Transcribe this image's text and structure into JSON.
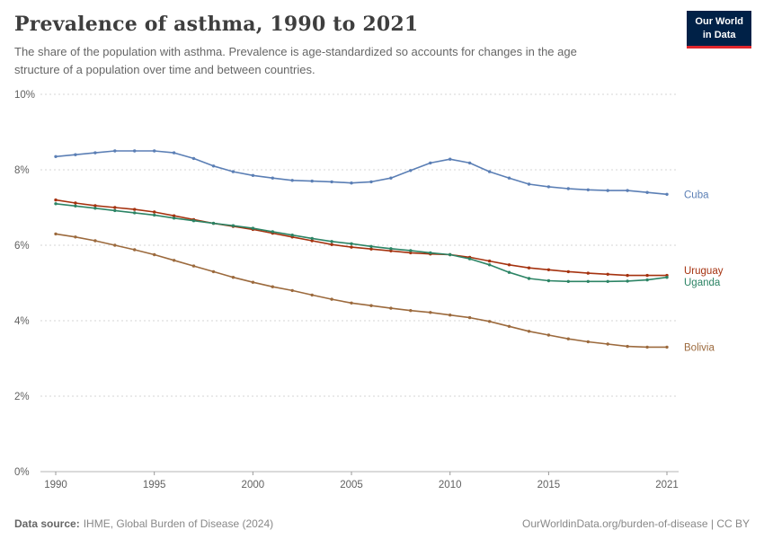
{
  "header": {
    "title": "Prevalence of asthma, 1990 to 2021",
    "subtitle": "The share of the population with asthma. Prevalence is age-standardized so accounts for changes in the age structure of a population over time and between countries.",
    "logo": {
      "line1": "Our World",
      "line2": "in Data"
    }
  },
  "footer": {
    "source_label": "Data source:",
    "source_text": "IHME, Global Burden of Disease (2024)",
    "credit": "OurWorldinData.org/burden-of-disease | CC BY"
  },
  "chart_data": {
    "type": "line",
    "title": "Prevalence of asthma, 1990 to 2021",
    "xlabel": "",
    "ylabel": "",
    "ylim": [
      0,
      10
    ],
    "yticks": [
      0,
      2,
      4,
      6,
      8,
      10
    ],
    "ytick_suffix": "%",
    "xticks": [
      1990,
      1995,
      2000,
      2005,
      2010,
      2015,
      2021
    ],
    "grid": "dashed-horizontal",
    "legend_position": "right-end-labels",
    "x": [
      1990,
      1991,
      1992,
      1993,
      1994,
      1995,
      1996,
      1997,
      1998,
      1999,
      2000,
      2001,
      2002,
      2003,
      2004,
      2005,
      2006,
      2007,
      2008,
      2009,
      2010,
      2011,
      2012,
      2013,
      2014,
      2015,
      2016,
      2017,
      2018,
      2019,
      2020,
      2021
    ],
    "series": [
      {
        "name": "Cuba",
        "color": "#5b7fb5",
        "values": [
          8.35,
          8.4,
          8.45,
          8.5,
          8.5,
          8.5,
          8.45,
          8.3,
          8.1,
          7.95,
          7.85,
          7.78,
          7.72,
          7.7,
          7.68,
          7.65,
          7.68,
          7.78,
          7.98,
          8.18,
          8.28,
          8.18,
          7.95,
          7.78,
          7.62,
          7.55,
          7.5,
          7.47,
          7.45,
          7.45,
          7.4,
          7.35
        ]
      },
      {
        "name": "Uruguay",
        "color": "#a5320f",
        "values": [
          7.2,
          7.12,
          7.05,
          7.0,
          6.95,
          6.88,
          6.78,
          6.68,
          6.58,
          6.5,
          6.42,
          6.32,
          6.22,
          6.12,
          6.02,
          5.95,
          5.9,
          5.85,
          5.8,
          5.77,
          5.75,
          5.68,
          5.58,
          5.48,
          5.4,
          5.35,
          5.3,
          5.26,
          5.23,
          5.2,
          5.2,
          5.2
        ]
      },
      {
        "name": "Uganda",
        "color": "#2c8465",
        "values": [
          7.1,
          7.04,
          6.98,
          6.92,
          6.86,
          6.8,
          6.72,
          6.65,
          6.58,
          6.52,
          6.45,
          6.36,
          6.27,
          6.18,
          6.1,
          6.04,
          5.97,
          5.91,
          5.86,
          5.8,
          5.75,
          5.64,
          5.48,
          5.28,
          5.12,
          5.06,
          5.04,
          5.04,
          5.04,
          5.05,
          5.08,
          5.15
        ]
      },
      {
        "name": "Bolivia",
        "color": "#9c6a3d",
        "values": [
          6.3,
          6.22,
          6.12,
          6.0,
          5.88,
          5.75,
          5.6,
          5.45,
          5.3,
          5.15,
          5.02,
          4.9,
          4.8,
          4.68,
          4.57,
          4.47,
          4.4,
          4.33,
          4.27,
          4.22,
          4.15,
          4.08,
          3.98,
          3.85,
          3.72,
          3.62,
          3.52,
          3.44,
          3.38,
          3.32,
          3.3,
          3.3
        ]
      }
    ]
  }
}
